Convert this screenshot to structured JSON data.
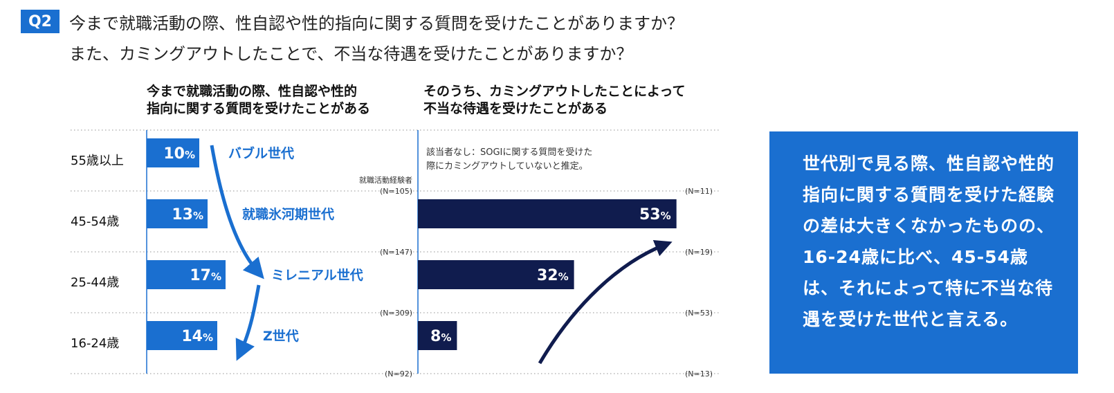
{
  "question": {
    "badge": "Q2",
    "line1": "今まで就職活動の際、性自認や性的指向に関する質問を受けたことがありますか？",
    "line2": "また、カミングアウトしたことで、不当な待遇を受けたことがありますか？"
  },
  "colors": {
    "accent_blue": "#1a6fd0",
    "navy": "#101c4e"
  },
  "side_note": "世代別で見る際、性自認や性的指向に関する質問を受けた経験の差は大きくなかったものの、16-24歳に比べ、45-54歳は、それによって特に不当な待遇を受けた世代と言える。",
  "chart_data": [
    {
      "type": "bar",
      "title": "今まで就職活動の際、性自認や性的指向に関する質問を受けたことがある",
      "title_lines": [
        "今まで就職活動の際、性自認や性的",
        "指向に関する質問を受けたことがある"
      ],
      "categories": [
        "55歳以上",
        "45-54歳",
        "25-44歳",
        "16-24歳"
      ],
      "values": [
        10,
        13,
        17,
        14
      ],
      "value_labels": [
        "10",
        "13",
        "17",
        "14"
      ],
      "unit": "%",
      "generations": [
        "バブル世代",
        "就職氷河期世代",
        "ミレニアル世代",
        "Z世代"
      ],
      "n_header": "就職活動経験者",
      "n_values": [
        "(N=105)",
        "(N=147)",
        "(N=309)",
        "(N=92)"
      ],
      "color": "#1a6fd0",
      "xlim": [
        0,
        100
      ]
    },
    {
      "type": "bar",
      "title": "そのうち、カミングアウトしたことによって不当な待遇を受けたことがある",
      "title_lines": [
        "そのうち、カミングアウトしたことによって",
        "不当な待遇を受けたことがある"
      ],
      "categories": [
        "55歳以上",
        "45-54歳",
        "25-44歳",
        "16-24歳"
      ],
      "values": [
        null,
        53,
        32,
        8
      ],
      "value_labels": [
        "",
        "53",
        "32",
        "8"
      ],
      "unit": "%",
      "note_lines": [
        "該当者なし：SOGIに関する質問を受けた",
        "際にカミングアウトしていないと推定。"
      ],
      "n_values": [
        "(N=11)",
        "(N=19)",
        "(N=53)",
        "(N=13)"
      ],
      "color": "#101c4e",
      "xlim": [
        0,
        100
      ]
    }
  ]
}
